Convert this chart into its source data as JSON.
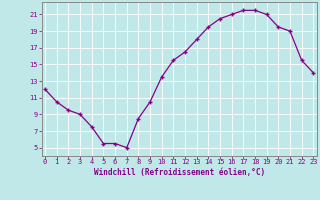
{
  "x": [
    0,
    1,
    2,
    3,
    4,
    5,
    6,
    7,
    8,
    9,
    10,
    11,
    12,
    13,
    14,
    15,
    16,
    17,
    18,
    19,
    20,
    21,
    22,
    23
  ],
  "y": [
    12.0,
    10.5,
    9.5,
    9.0,
    7.5,
    5.5,
    5.5,
    5.0,
    8.5,
    10.5,
    13.5,
    15.5,
    16.5,
    18.0,
    19.5,
    20.5,
    21.0,
    21.5,
    21.5,
    21.0,
    19.5,
    19.0,
    15.5,
    14.0
  ],
  "line_color": "#880088",
  "marker_color": "#880088",
  "bg_color": "#c0e8e8",
  "grid_color": "#aacccc",
  "tick_label_color": "#880088",
  "xlabel": "Windchill (Refroidissement éolien,°C)",
  "xlabel_color": "#880088",
  "yticks": [
    5,
    7,
    9,
    11,
    13,
    15,
    17,
    19,
    21
  ],
  "xticks": [
    0,
    1,
    2,
    3,
    4,
    5,
    6,
    7,
    8,
    9,
    10,
    11,
    12,
    13,
    14,
    15,
    16,
    17,
    18,
    19,
    20,
    21,
    22,
    23
  ],
  "ylim": [
    4.0,
    22.5
  ],
  "xlim": [
    -0.3,
    23.3
  ],
  "spine_color": "#888888",
  "tick_fontsize": 5.0,
  "xlabel_fontsize": 5.5
}
